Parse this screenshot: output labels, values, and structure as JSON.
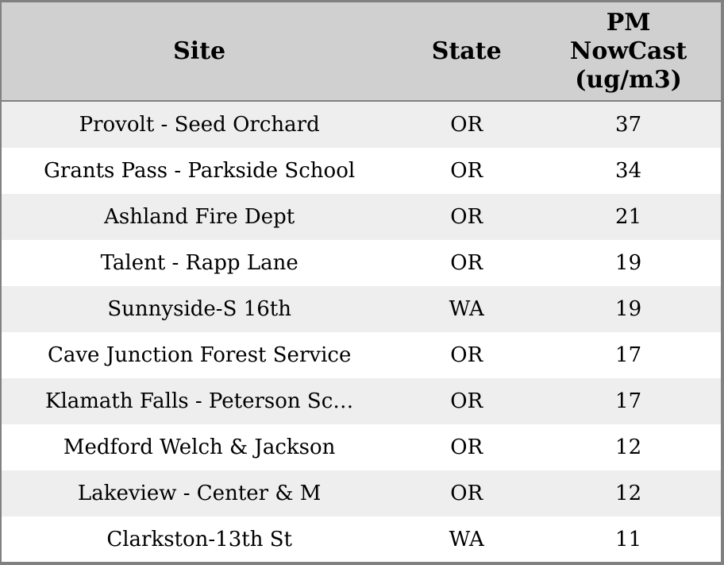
{
  "chart_data": {
    "type": "table",
    "title": "",
    "columns": [
      "Site",
      "State",
      "PM NowCast (ug/m3)"
    ],
    "rows": [
      [
        "Provolt - Seed Orchard",
        "OR",
        37
      ],
      [
        "Grants Pass - Parkside School",
        "OR",
        34
      ],
      [
        "Ashland Fire Dept",
        "OR",
        21
      ],
      [
        "Talent - Rapp Lane",
        "OR",
        19
      ],
      [
        "Sunnyside-S 16th",
        "WA",
        19
      ],
      [
        "Cave Junction Forest Service",
        "OR",
        17
      ],
      [
        "Klamath Falls - Peterson Sc…",
        "OR",
        17
      ],
      [
        "Medford Welch & Jackson",
        "OR",
        12
      ],
      [
        "Lakeview - Center & M",
        "OR",
        12
      ],
      [
        "Clarkston-13th St",
        "WA",
        11
      ]
    ],
    "layout": {
      "sorted_by": "PM NowCast (ug/m3) descending",
      "row_striping": true
    }
  },
  "colors": {
    "header_bg": "#d0d0d0",
    "frame_border": "#818181",
    "row_stripe_bg": "#eeeeee",
    "row_bg": "#ffffff",
    "text": "#000000"
  }
}
